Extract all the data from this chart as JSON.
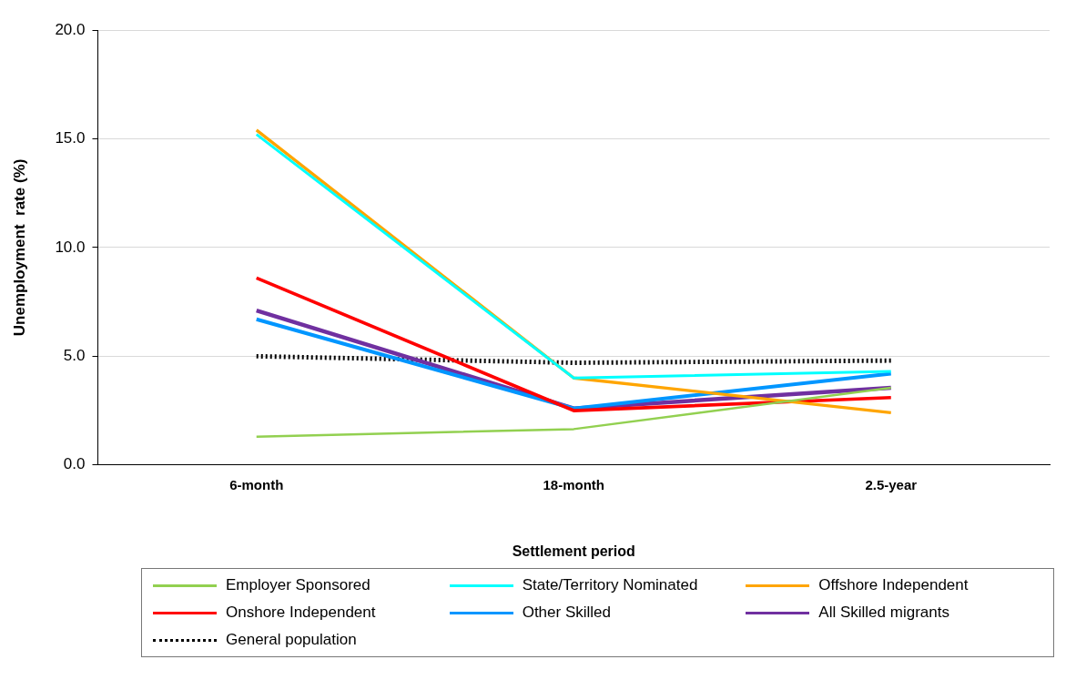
{
  "chart_data": {
    "type": "line",
    "xlabel": "Settlement period",
    "ylabel": "Unemployment  rate (%)",
    "categories": [
      "6-month",
      "18-month",
      "2.5-year"
    ],
    "series": [
      {
        "name": "Employer Sponsored",
        "color": "#92d050",
        "values": [
          1.3,
          1.65,
          3.55
        ]
      },
      {
        "name": "State/Territory Nominated",
        "color": "#00ffff",
        "values": [
          15.2,
          4.0,
          4.3
        ]
      },
      {
        "name": "Offshore Independent",
        "color": "#ffa500",
        "values": [
          15.4,
          4.0,
          2.4
        ]
      },
      {
        "name": "Onshore Independent",
        "color": "#ff0000",
        "values": [
          8.6,
          2.5,
          3.1
        ]
      },
      {
        "name": "Other Skilled",
        "color": "#0096ff",
        "values": [
          6.7,
          2.6,
          4.2
        ]
      },
      {
        "name": "All Skilled migrants",
        "color": "#7030a0",
        "values": [
          7.1,
          2.6,
          3.55
        ]
      },
      {
        "name": "General population",
        "color": "#000000",
        "values": [
          5.0,
          4.7,
          4.8
        ],
        "line_style": "dotted"
      }
    ],
    "ylim": [
      0,
      20
    ],
    "yticks": [
      {
        "value": 0,
        "label": "0.0"
      },
      {
        "value": 5,
        "label": "5.0"
      },
      {
        "value": 10,
        "label": "10.0"
      },
      {
        "value": 15,
        "label": "15.0"
      },
      {
        "value": 20,
        "label": "20.0"
      }
    ],
    "grid": "y",
    "legend": "bottom",
    "marker": "none",
    "line_style": "solid"
  }
}
